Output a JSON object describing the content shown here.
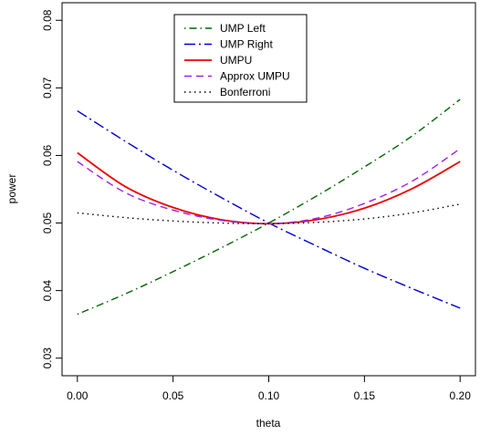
{
  "chart_data": {
    "type": "line",
    "title": "",
    "xlabel": "theta",
    "ylabel": "power",
    "xlim": [
      -0.008,
      0.208
    ],
    "ylim": [
      0.0274,
      0.0826
    ],
    "xticks": [
      0.0,
      0.05,
      0.1,
      0.15,
      0.2
    ],
    "xtick_labels": [
      "0.00",
      "0.05",
      "0.10",
      "0.15",
      "0.20"
    ],
    "yticks": [
      0.03,
      0.04,
      0.05,
      0.06,
      0.07,
      0.08
    ],
    "ytick_labels": [
      "0.03",
      "0.04",
      "0.05",
      "0.06",
      "0.07",
      "0.08"
    ],
    "grid": false,
    "legend_position": "top-center",
    "series": [
      {
        "name": "UMP Left",
        "color": "#006400",
        "dash": "dotdash",
        "x": [
          0.0,
          0.025,
          0.05,
          0.075,
          0.1,
          0.125,
          0.15,
          0.175,
          0.2
        ],
        "y": [
          0.0365,
          0.0395,
          0.0428,
          0.0463,
          0.05,
          0.054,
          0.0583,
          0.0629,
          0.0683
        ]
      },
      {
        "name": "UMP Right",
        "color": "#0000cc",
        "dash": "longdash-dot",
        "x": [
          0.0,
          0.025,
          0.05,
          0.075,
          0.1,
          0.125,
          0.15,
          0.175,
          0.2
        ],
        "y": [
          0.0666,
          0.0621,
          0.0578,
          0.0538,
          0.05,
          0.0466,
          0.0433,
          0.0403,
          0.0374
        ]
      },
      {
        "name": "UMPU",
        "color": "#ee0000",
        "dash": "solid",
        "x": [
          0.0,
          0.025,
          0.05,
          0.075,
          0.1,
          0.125,
          0.15,
          0.175,
          0.2
        ],
        "y": [
          0.0604,
          0.0554,
          0.0523,
          0.0505,
          0.0499,
          0.0505,
          0.0522,
          0.0551,
          0.0591
        ]
      },
      {
        "name": "Approx UMPU",
        "color": "#a020f0",
        "dash": "dashed",
        "x": [
          0.0,
          0.025,
          0.05,
          0.075,
          0.1,
          0.125,
          0.15,
          0.175,
          0.2
        ],
        "y": [
          0.0591,
          0.0545,
          0.0519,
          0.0504,
          0.0499,
          0.0507,
          0.0529,
          0.0562,
          0.061
        ]
      },
      {
        "name": "Bonferroni",
        "color": "#000000",
        "dash": "dotted",
        "x": [
          0.0,
          0.025,
          0.05,
          0.075,
          0.1,
          0.125,
          0.15,
          0.175,
          0.2
        ],
        "y": [
          0.0515,
          0.0508,
          0.0503,
          0.05,
          0.0499,
          0.0501,
          0.0506,
          0.0515,
          0.0528
        ]
      }
    ]
  }
}
